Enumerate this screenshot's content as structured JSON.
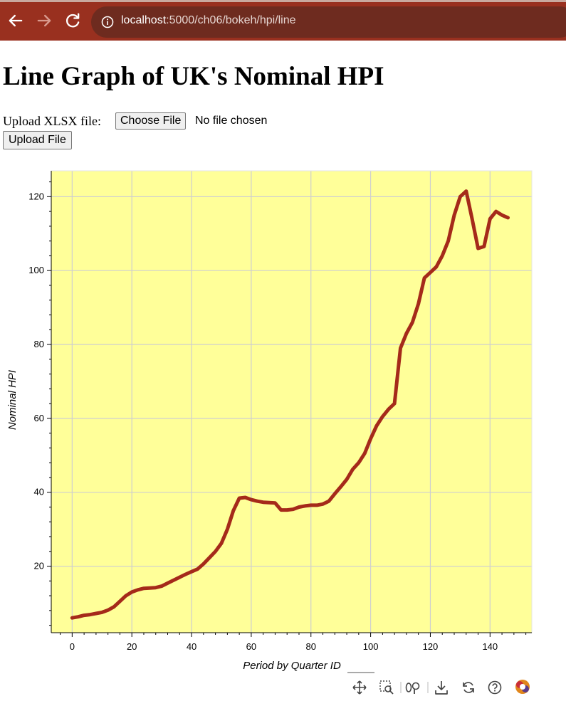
{
  "browser": {
    "url_host": "localhost",
    "url_path": ":5000/ch06/bokeh/hpi/line"
  },
  "page": {
    "title": "Line Graph of UK's Nominal HPI",
    "upload_label": "Upload XLSX file:",
    "choose_file_label": "Choose File",
    "file_status": "No file chosen",
    "upload_button_label": "Upload File"
  },
  "toolbar": {
    "tools": [
      "pan-icon",
      "box-zoom-icon",
      "wheel-zoom-icon",
      "save-icon",
      "reset-icon",
      "help-icon",
      "bokeh-logo"
    ]
  },
  "colors": {
    "plot_background": "#ffff99",
    "line": "#a52a1a",
    "browser_chrome": "#99301f"
  },
  "chart_data": {
    "type": "line",
    "title": "",
    "xlabel": "Period by Quarter ID",
    "ylabel": "Nominal HPI",
    "xlim": [
      -7,
      154
    ],
    "ylim": [
      2,
      127
    ],
    "xticks": [
      0,
      20,
      40,
      60,
      80,
      100,
      120,
      140
    ],
    "yticks": [
      20,
      40,
      60,
      80,
      100,
      120
    ],
    "grid": true,
    "series": [
      {
        "x": [
          0,
          2,
          4,
          6,
          8,
          10,
          12,
          14,
          16,
          18,
          20,
          22,
          24,
          26,
          28,
          30,
          32,
          34,
          36,
          38,
          40,
          42,
          44,
          46,
          48,
          50,
          52,
          54,
          56,
          58,
          60,
          62,
          64,
          66,
          68,
          70,
          72,
          74,
          76,
          78,
          80,
          82,
          84,
          86,
          88,
          90,
          92,
          94,
          96,
          98,
          100,
          102,
          104,
          106,
          108,
          110,
          112,
          114,
          116,
          118,
          120,
          122,
          124,
          126,
          128,
          130,
          132,
          134,
          136,
          138,
          140,
          142,
          144,
          146
        ],
        "y": [
          6,
          6.3,
          6.7,
          6.9,
          7.2,
          7.5,
          8.1,
          9,
          10.5,
          12,
          13,
          13.6,
          14,
          14.1,
          14.2,
          14.6,
          15.4,
          16.2,
          17,
          17.8,
          18.5,
          19.2,
          20.6,
          22.3,
          24,
          26.2,
          30,
          35,
          38.4,
          38.6,
          38,
          37.6,
          37.3,
          37.2,
          37.1,
          35.2,
          35.2,
          35.4,
          36,
          36.3,
          36.5,
          36.5,
          36.8,
          37.6,
          39.6,
          41.5,
          43.5,
          46.2,
          48,
          50.5,
          54.5,
          58,
          60.5,
          62.5,
          64,
          79,
          83,
          86,
          91,
          98,
          99.5,
          101,
          104,
          108,
          115,
          120,
          121.5,
          114,
          106,
          106.5,
          114,
          116,
          115,
          114.3
        ]
      }
    ]
  }
}
